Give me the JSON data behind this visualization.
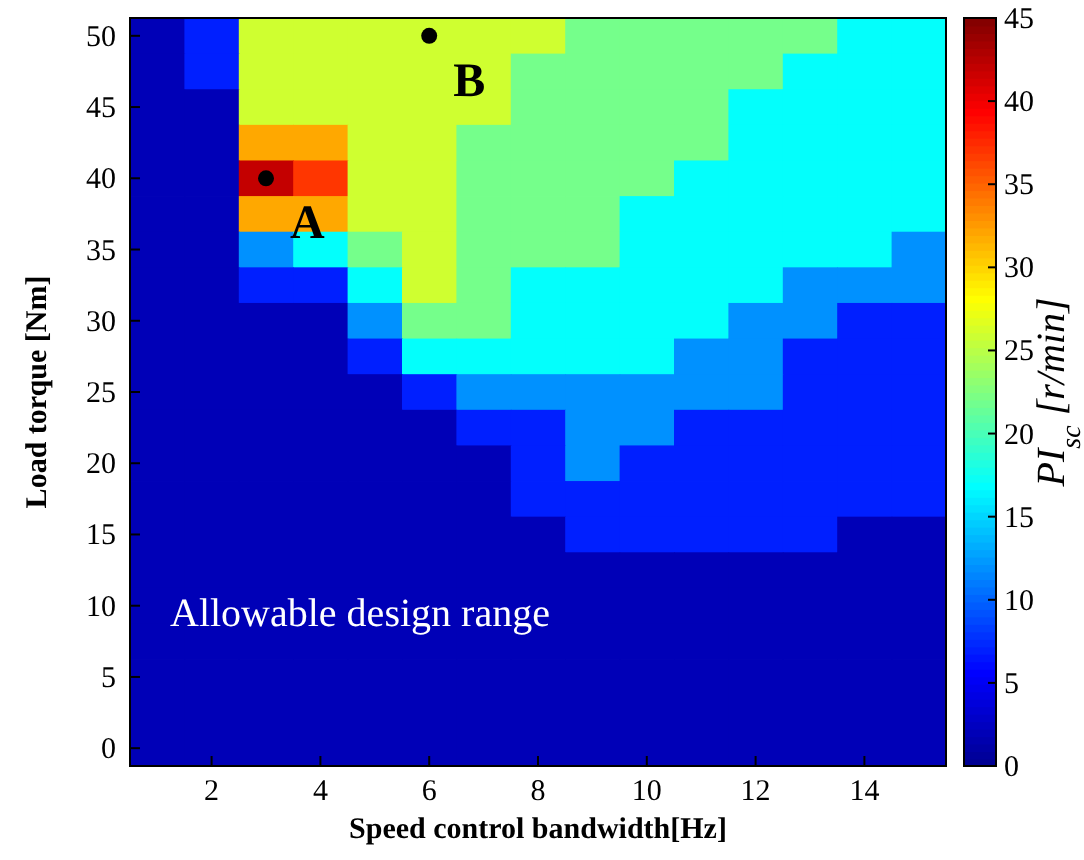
{
  "chart_data": {
    "type": "heatmap",
    "xlabel": "Speed control bandwidth[Hz]",
    "ylabel": "Load torque [Nm]",
    "clabel": "PI$_{sc}$ [r/min]",
    "categories": [
      null,
      "2",
      null,
      "4",
      null,
      "6",
      null,
      "8",
      null,
      "10",
      null,
      "12",
      null,
      "14",
      null
    ],
    "y_categories": [
      "50",
      null,
      "45",
      null,
      "40",
      null,
      "35",
      null,
      "30",
      null,
      "25",
      null,
      "20",
      null,
      "15",
      null,
      "10",
      null,
      "5",
      null,
      "0"
    ],
    "cells": [
      [
        2,
        7,
        26,
        26,
        26,
        26,
        26,
        26,
        22,
        22,
        22,
        22,
        22,
        17,
        17
      ],
      [
        2,
        7,
        26,
        26,
        26,
        26,
        26,
        22,
        22,
        22,
        22,
        22,
        17,
        17,
        17
      ],
      [
        2,
        2,
        26,
        26,
        26,
        26,
        26,
        22,
        22,
        22,
        22,
        17,
        17,
        17,
        17
      ],
      [
        2,
        2,
        32,
        32,
        26,
        26,
        22,
        22,
        22,
        22,
        22,
        17,
        17,
        17,
        17
      ],
      [
        2,
        2,
        42,
        37,
        26,
        26,
        22,
        22,
        22,
        22,
        17,
        17,
        17,
        17,
        17
      ],
      [
        2,
        2,
        32,
        32,
        26,
        26,
        22,
        22,
        22,
        17,
        17,
        17,
        17,
        17,
        17
      ],
      [
        2,
        2,
        12,
        17,
        22,
        26,
        22,
        22,
        22,
        17,
        17,
        17,
        17,
        17,
        12
      ],
      [
        2,
        2,
        7,
        7,
        17,
        26,
        22,
        17,
        17,
        17,
        17,
        17,
        12,
        12,
        12
      ],
      [
        2,
        2,
        2,
        2,
        12,
        22,
        22,
        17,
        17,
        17,
        17,
        12,
        12,
        7,
        7
      ],
      [
        2,
        2,
        2,
        2,
        7,
        17,
        17,
        17,
        17,
        17,
        12,
        12,
        7,
        7,
        7
      ],
      [
        2,
        2,
        2,
        2,
        2,
        7,
        12,
        12,
        12,
        12,
        12,
        12,
        7,
        7,
        7
      ],
      [
        2,
        2,
        2,
        2,
        2,
        2,
        7,
        7,
        12,
        12,
        7,
        7,
        7,
        7,
        7
      ],
      [
        2,
        2,
        2,
        2,
        2,
        2,
        2,
        7,
        12,
        7,
        7,
        7,
        7,
        7,
        7
      ],
      [
        2,
        2,
        2,
        2,
        2,
        2,
        2,
        7,
        7,
        7,
        7,
        7,
        7,
        7,
        7
      ],
      [
        2,
        2,
        2,
        2,
        2,
        2,
        2,
        2,
        7,
        7,
        7,
        7,
        7,
        2,
        2
      ],
      [
        2,
        2,
        2,
        2,
        2,
        2,
        2,
        2,
        2,
        2,
        2,
        2,
        2,
        2,
        2
      ],
      [
        2,
        2,
        2,
        2,
        2,
        2,
        2,
        2,
        2,
        2,
        2,
        2,
        2,
        2,
        2
      ],
      [
        2,
        2,
        2,
        2,
        2,
        2,
        2,
        2,
        2,
        2,
        2,
        2,
        2,
        2,
        2
      ],
      [
        2,
        2,
        2,
        2,
        2,
        2,
        2,
        2,
        2,
        2,
        2,
        2,
        2,
        2,
        2
      ],
      [
        2,
        2,
        2,
        2,
        2,
        2,
        2,
        2,
        2,
        2,
        2,
        2,
        2,
        2,
        2
      ],
      [
        2,
        2,
        2,
        2,
        2,
        2,
        2,
        2,
        2,
        2,
        2,
        2,
        2,
        2,
        2
      ]
    ],
    "clim": [
      0,
      45
    ],
    "cticks": [
      0,
      5,
      10,
      15,
      20,
      25,
      30,
      35,
      40,
      45
    ],
    "annotations": [
      "A",
      {
        "text": "B",
        "x": "6",
        "y": "50"
      },
      "Allowable design range"
    ]
  }
}
